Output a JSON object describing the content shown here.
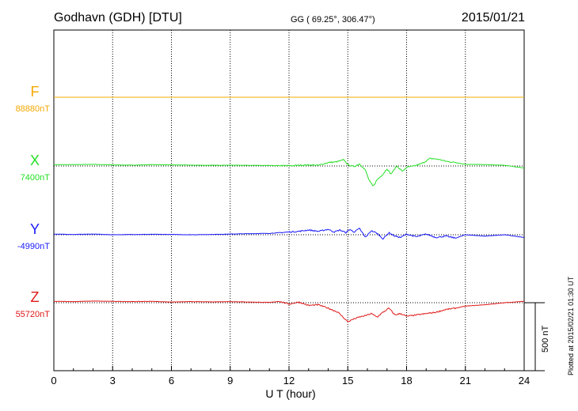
{
  "header": {
    "station": "Godhavn (GDH)  [DTU]",
    "coords": "GG ( 69.25°, 306.47°)",
    "date": "2015/01/21"
  },
  "side_note": "Plotted at 2015/02/21 01:30 UT",
  "scale_label": "500 nT",
  "chart_data": {
    "type": "line",
    "title": "Godhavn (GDH)  [DTU]",
    "xlabel": "U T (hour)",
    "ylabel": "",
    "xlim": [
      0,
      24
    ],
    "x_ticks": [
      "0",
      "3",
      "6",
      "9",
      "12",
      "15",
      "18",
      "21",
      "24"
    ],
    "x_tick_values": [
      0,
      3,
      6,
      9,
      12,
      15,
      18,
      21,
      24
    ],
    "grid": true,
    "scale_bar_nT": 500,
    "series": [
      {
        "name": "F",
        "baseline_label": "88880nT",
        "color": "#f5a800",
        "x": [
          0,
          24
        ],
        "values": [
          0,
          0
        ]
      },
      {
        "name": "X",
        "baseline_label": "7400nT",
        "color": "#22e022",
        "x": [
          0,
          1,
          2,
          3,
          4,
          5,
          6,
          7,
          8,
          9,
          10,
          11,
          12,
          12.5,
          13,
          13.5,
          14,
          14.4,
          14.8,
          15.0,
          15.3,
          15.6,
          15.9,
          16.1,
          16.3,
          16.5,
          16.8,
          17.0,
          17.2,
          17.5,
          17.8,
          18.0,
          18.4,
          18.8,
          19.2,
          19.6,
          20.0,
          20.5,
          21,
          22,
          23,
          24
        ],
        "values": [
          10,
          10,
          12,
          8,
          6,
          10,
          8,
          6,
          5,
          6,
          5,
          3,
          2,
          5,
          8,
          5,
          25,
          30,
          45,
          10,
          -5,
          15,
          -30,
          -110,
          -150,
          -100,
          -60,
          -20,
          -60,
          0,
          -40,
          -10,
          0,
          20,
          55,
          50,
          35,
          25,
          12,
          10,
          5,
          -15
        ]
      },
      {
        "name": "Y",
        "baseline_label": "-4990nT",
        "color": "#1a1aff",
        "x": [
          0,
          1,
          2,
          3,
          4,
          5,
          6,
          7,
          8,
          9,
          10,
          11,
          11.5,
          12,
          12.5,
          13,
          13.5,
          14,
          14.3,
          14.6,
          14.9,
          15.1,
          15.3,
          15.6,
          15.9,
          16.2,
          16.5,
          16.8,
          17.1,
          17.4,
          17.7,
          18.0,
          18.5,
          19,
          19.5,
          20,
          20.5,
          21,
          22,
          23,
          24
        ],
        "values": [
          5,
          2,
          5,
          0,
          2,
          3,
          2,
          0,
          2,
          5,
          8,
          10,
          15,
          20,
          25,
          35,
          25,
          40,
          20,
          35,
          15,
          40,
          20,
          45,
          -20,
          30,
          10,
          -30,
          15,
          -10,
          -20,
          5,
          -15,
          5,
          -20,
          -10,
          -25,
          0,
          -10,
          0,
          -20
        ]
      },
      {
        "name": "Z",
        "baseline_label": "55720nT",
        "color": "#e01818",
        "x": [
          0,
          1,
          2,
          3,
          4,
          5,
          6,
          7,
          8,
          9,
          10,
          11,
          11.5,
          12,
          12.5,
          13,
          13.5,
          14,
          14.5,
          15.0,
          15.3,
          15.6,
          15.9,
          16.2,
          16.5,
          16.8,
          17.1,
          17.4,
          17.7,
          18.0,
          18.5,
          19,
          19.5,
          20,
          20.5,
          21,
          22,
          23,
          24
        ],
        "values": [
          10,
          8,
          12,
          10,
          8,
          10,
          5,
          8,
          6,
          8,
          5,
          2,
          10,
          -10,
          5,
          -20,
          -15,
          -40,
          -70,
          -140,
          -120,
          -105,
          -95,
          -80,
          -105,
          -70,
          -40,
          -90,
          -80,
          -100,
          -90,
          -80,
          -70,
          -50,
          -40,
          -25,
          -15,
          0,
          10
        ]
      }
    ]
  }
}
